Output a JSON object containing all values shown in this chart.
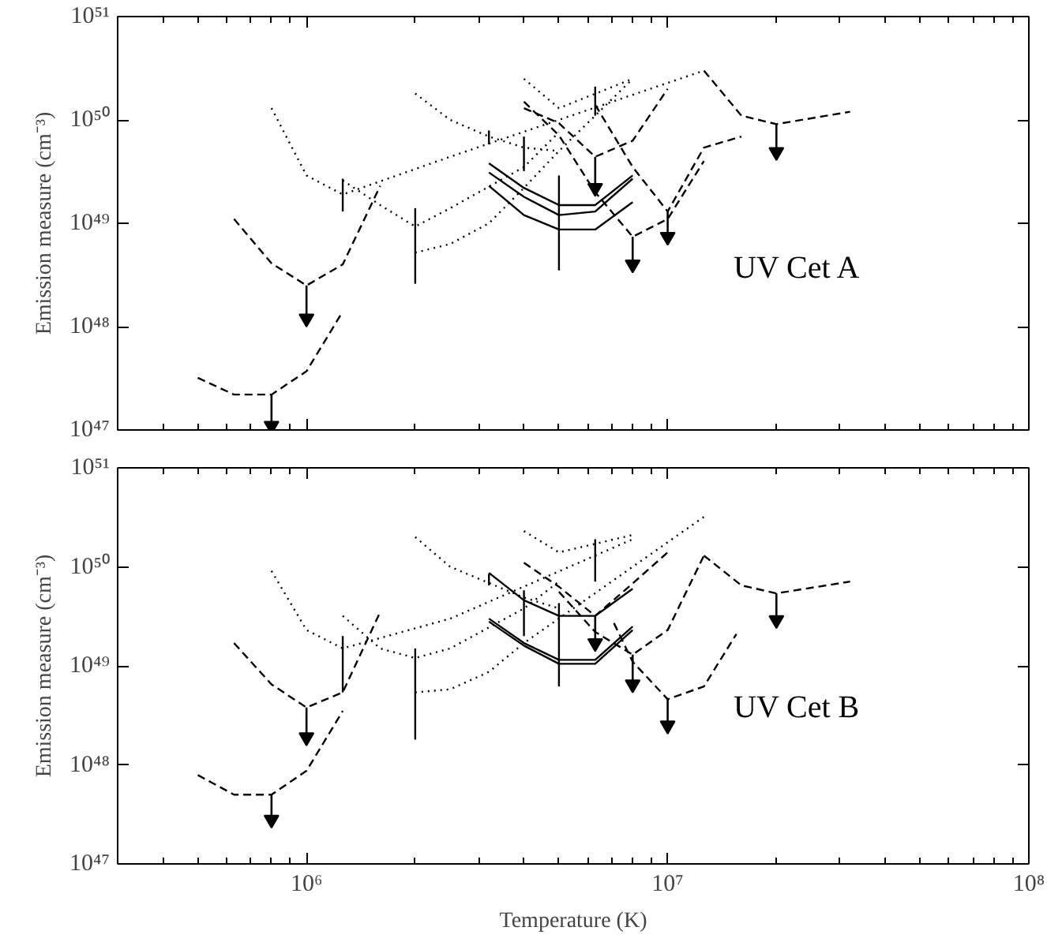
{
  "chart_data": [
    {
      "type": "line",
      "log": "xy",
      "ylabel": "Emission measure (cm⁻³)",
      "annotations": [
        "UV Cet A"
      ],
      "tick_labels": "y",
      "marker": "none",
      "xlim": [
        300000.0,
        100000000.0
      ],
      "ylim": [
        1e+47,
        1e+51
      ],
      "xticks": [
        {
          "value": 1000000.0,
          "label": null
        },
        {
          "value": 10000000.0,
          "label": null
        },
        {
          "value": 100000000.0,
          "label": null
        }
      ],
      "yticks": [
        {
          "value": 1e+47,
          "label": "10⁴⁷"
        },
        {
          "value": 1e+48,
          "label": "10⁴⁸"
        },
        {
          "value": 1e+49,
          "label": "10⁴⁹"
        },
        {
          "value": 1e+50,
          "label": "10⁵⁰"
        },
        {
          "value": 1e+51,
          "label": "10⁵¹"
        }
      ],
      "series": [
        {
          "line_style": "dashed",
          "color": "#000000",
          "x": [
            500000.0,
            630000.0,
            800000.0,
            1000000.0,
            1260000.0
          ],
          "values": [
            3.2e+47,
            2.2e+47,
            2.2e+47,
            3.7e+47,
            1.4e+48
          ]
        },
        {
          "line_style": "dashed",
          "color": "#000000",
          "x": [
            630000.0,
            800000.0,
            1000000.0,
            1260000.0,
            1600000.0
          ],
          "values": [
            1.1e+49,
            4.1e+48,
            2.5e+48,
            4e+48,
            2.3e+49
          ]
        },
        {
          "line_style": "dotted",
          "color": "#000000",
          "x": [
            800000.0,
            1000000.0,
            1260000.0,
            2500000.0,
            12600000.0
          ],
          "values": [
            1.3e+50,
            2.9e+49,
            1.9e+49,
            4.4e+49,
            3e+50
          ]
        },
        {
          "line_style": "dotted",
          "color": "#000000",
          "x": [
            1260000.0,
            1600000.0,
            2000000.0,
            2500000.0,
            4000000.0,
            5000000.0
          ],
          "values": [
            2.6e+49,
            1.5e+49,
            9.3e+48,
            1.4e+49,
            3.5e+49,
            7.6e+49
          ]
        },
        {
          "line_style": "dotted",
          "color": "#000000",
          "x": [
            2000000.0,
            2500000.0,
            3200000.0,
            4000000.0,
            5000000.0,
            6300000.0,
            8000000.0
          ],
          "values": [
            5.2e+48,
            6.3e+48,
            1e+49,
            2.2e+49,
            5e+49,
            1.1e+50,
            2.5e+50
          ]
        },
        {
          "line_style": "dotted",
          "color": "#000000",
          "x": [
            2000000.0,
            2500000.0,
            3200000.0,
            4000000.0,
            5000000.0
          ],
          "values": [
            1.8e+50,
            1e+50,
            6.9e+49,
            5.4e+49,
            5e+49
          ]
        },
        {
          "line_style": "dotted",
          "color": "#000000",
          "x": [
            4000000.0,
            5000000.0,
            8000000.0
          ],
          "values": [
            2.5e+50,
            1.3e+50,
            2.5e+50
          ]
        },
        {
          "line_style": "solid",
          "color": "#000000",
          "x": [
            3200000.0,
            4000000.0,
            5000000.0,
            6300000.0,
            8000000.0
          ],
          "values": [
            3.8e+49,
            2.2e+49,
            1.5e+49,
            1.5e+49,
            2.9e+49
          ]
        },
        {
          "line_style": "solid",
          "color": "#000000",
          "x": [
            3200000.0,
            4000000.0,
            5000000.0,
            6300000.0,
            8000000.0
          ],
          "values": [
            3.1e+49,
            1.8e+49,
            1.2e+49,
            1.3e+49,
            2.7e+49
          ]
        },
        {
          "line_style": "solid",
          "color": "#000000",
          "x": [
            3200000.0,
            4000000.0,
            5000000.0,
            6300000.0,
            8000000.0
          ],
          "values": [
            2.3e+49,
            1.2e+49,
            8.7e+48,
            8.7e+48,
            1.6e+49
          ]
        },
        {
          "line_style": "dashed",
          "color": "#000000",
          "x": [
            4000000.0,
            5000000.0,
            6300000.0,
            8000000.0,
            10000000.0
          ],
          "values": [
            1.3e+50,
            9.3e+49,
            4.4e+49,
            6.3e+49,
            2e+50
          ]
        },
        {
          "line_style": "dashed",
          "color": "#000000",
          "x": [
            6300000.0,
            8000000.0,
            10000000.0,
            12600000.0,
            16000000.0
          ],
          "values": [
            1.4e+50,
            3.5e+49,
            1.3e+49,
            5.4e+49,
            6.9e+49
          ]
        },
        {
          "line_style": "dashed",
          "color": "#000000",
          "x": [
            4000000.0,
            5000000.0,
            6300000.0,
            8000000.0,
            10000000.0,
            12600000.0
          ],
          "values": [
            1.5e+50,
            7.1e+49,
            2e+49,
            7.4e+48,
            1.1e+49,
            4e+49
          ]
        },
        {
          "line_style": "dashed",
          "color": "#000000",
          "x": [
            12600000.0,
            16000000.0,
            20000000.0,
            32000000.0
          ],
          "values": [
            3e+50,
            1.1e+50,
            9.1e+49,
            1.2e+50
          ]
        },
        {
          "line_style": "solid",
          "color": "#000000",
          "x": [
            1260000.0,
            1260000.0
          ],
          "values": [
            1.3e+49,
            2.7e+49
          ]
        },
        {
          "line_style": "solid",
          "color": "#000000",
          "x": [
            2000000.0,
            2000000.0
          ],
          "values": [
            2.6e+48,
            1.4e+49
          ]
        },
        {
          "line_style": "solid",
          "color": "#000000",
          "x": [
            3200000.0,
            3200000.0
          ],
          "values": [
            5.8e+49,
            7.9e+49
          ]
        },
        {
          "line_style": "solid",
          "color": "#000000",
          "x": [
            4000000.0,
            4000000.0
          ],
          "values": [
            3.2e+49,
            6.9e+49
          ]
        },
        {
          "line_style": "solid",
          "color": "#000000",
          "x": [
            5000000.0,
            5000000.0
          ],
          "values": [
            3.5e+48,
            2.9e+49
          ]
        },
        {
          "line_style": "solid",
          "color": "#000000",
          "x": [
            6300000.0,
            6300000.0
          ],
          "values": [
            1.1e+50,
            2.1e+50
          ]
        },
        {
          "type": "scatter",
          "marker": "triangle",
          "color": "#000000",
          "x": [
            800000.0,
            1000000.0,
            6300000.0,
            8000000.0,
            10000000.0,
            20000000.0
          ],
          "values": [
            1.1e+47,
            1.2e+48,
            2.2e+49,
            4e+48,
            7.4e+48,
            4.9e+49
          ],
          "errors": [
            [
              1.1e+47,
              2.2e+47
            ],
            [
              1.2e+48,
              2.5e+48
            ],
            [
              2.2e+49,
              4.4e+49
            ],
            [
              4e+48,
              7.4e+48
            ],
            [
              7.4e+48,
              1.3e+49
            ],
            [
              4.9e+49,
              9.1e+49
            ]
          ]
        }
      ]
    },
    {
      "type": "line",
      "log": "xy",
      "xlabel": "Temperature (K)",
      "ylabel": "Emission measure (cm⁻³)",
      "annotations": [
        "UV Cet B"
      ],
      "marker": "none",
      "xlim": [
        300000.0,
        100000000.0
      ],
      "ylim": [
        1e+47,
        1e+51
      ],
      "xticks": [
        {
          "value": 1000000.0,
          "label": "10⁶"
        },
        {
          "value": 10000000.0,
          "label": "10⁷"
        },
        {
          "value": 100000000.0,
          "label": "10⁸"
        }
      ],
      "yticks": [
        {
          "value": 1e+47,
          "label": "10⁴⁷"
        },
        {
          "value": 1e+48,
          "label": "10⁴⁸"
        },
        {
          "value": 1e+49,
          "label": "10⁴⁹"
        },
        {
          "value": 1e+50,
          "label": "10⁵⁰"
        },
        {
          "value": 1e+51,
          "label": "10⁵¹"
        }
      ],
      "series": [
        {
          "line_style": "dashed",
          "color": "#000000",
          "x": [
            500000.0,
            630000.0,
            800000.0,
            1000000.0,
            1260000.0
          ],
          "values": [
            7.9e+47,
            5e+47,
            5e+47,
            8.7e+47,
            3.5e+48
          ]
        },
        {
          "line_style": "dashed",
          "color": "#000000",
          "x": [
            630000.0,
            800000.0,
            1000000.0,
            1260000.0,
            1600000.0
          ],
          "values": [
            1.7e+49,
            6.5e+48,
            3.8e+48,
            5.4e+48,
            3.5e+49
          ]
        },
        {
          "line_style": "dotted",
          "color": "#000000",
          "x": [
            800000.0,
            1000000.0,
            1260000.0,
            2500000.0,
            8000000.0
          ],
          "values": [
            9.1e+49,
            2.3e+49,
            1.5e+49,
            3e+49,
            1.9e+50
          ]
        },
        {
          "line_style": "dotted",
          "color": "#000000",
          "x": [
            1260000.0,
            1600000.0,
            2000000.0,
            2500000.0,
            4000000.0,
            5000000.0
          ],
          "values": [
            3.2e+49,
            1.5e+49,
            1.2e+49,
            1.5e+49,
            3.8e+49,
            7.1e+49
          ]
        },
        {
          "line_style": "dotted",
          "color": "#000000",
          "x": [
            2000000.0,
            2500000.0,
            3200000.0,
            4000000.0,
            12600000.0
          ],
          "values": [
            5.4e+48,
            5.8e+48,
            8.7e+48,
            1.7e+49,
            3.2e+50
          ]
        },
        {
          "line_style": "dotted",
          "color": "#000000",
          "x": [
            2000000.0,
            2500000.0,
            4000000.0,
            5000000.0
          ],
          "values": [
            2e+50,
            1e+50,
            4.9e+49,
            3.8e+49
          ]
        },
        {
          "line_style": "dotted",
          "color": "#000000",
          "x": [
            4000000.0,
            5000000.0,
            8000000.0
          ],
          "values": [
            2.3e+50,
            1.4e+50,
            2.1e+50
          ]
        },
        {
          "line_style": "solid",
          "color": "#000000",
          "x": [
            3200000.0,
            4000000.0,
            5000000.0,
            6300000.0,
            8000000.0
          ],
          "values": [
            8.7e+49,
            4.6e+49,
            3.2e+49,
            3.2e+49,
            6e+49
          ]
        },
        {
          "line_style": "solid",
          "color": "#000000",
          "x": [
            3200000.0,
            4000000.0,
            5000000.0,
            6300000.0,
            8000000.0
          ],
          "values": [
            3e+49,
            1.7e+49,
            1.15e+49,
            1.15e+49,
            2.5e+49
          ]
        },
        {
          "line_style": "solid",
          "color": "#000000",
          "x": [
            3200000.0,
            4000000.0,
            5000000.0,
            6300000.0,
            8000000.0
          ],
          "values": [
            2.8e+49,
            1.6e+49,
            1.05e+49,
            1.05e+49,
            2.3e+49
          ]
        },
        {
          "line_style": "dashed",
          "color": "#000000",
          "x": [
            4000000.0,
            5000000.0,
            6300000.0,
            8000000.0,
            10000000.0
          ],
          "values": [
            1.1e+50,
            6.3e+49,
            3.2e+49,
            6.8e+49,
            1.4e+50
          ]
        },
        {
          "line_style": "dashed",
          "color": "#000000",
          "x": [
            5000000.0,
            6300000.0,
            8000000.0,
            10000000.0,
            12600000.0
          ],
          "values": [
            5.6e+49,
            2.2e+49,
            1.3e+49,
            2.3e+49,
            1.3e+50
          ]
        },
        {
          "line_style": "dashed",
          "color": "#000000",
          "x": [
            12600000.0,
            16000000.0,
            20000000.0,
            32000000.0
          ],
          "values": [
            1.3e+50,
            6.5e+49,
            5.4e+49,
            7.1e+49
          ]
        },
        {
          "line_style": "dashed",
          "color": "#000000",
          "x": [
            7100000.0,
            8000000.0,
            10000000.0,
            12600000.0,
            15500000.0
          ],
          "values": [
            2.7e+49,
            1.1e+49,
            4.6e+48,
            6.2e+48,
            2.1e+49
          ]
        },
        {
          "line_style": "solid",
          "color": "#000000",
          "x": [
            1260000.0,
            1260000.0
          ],
          "values": [
            5.4e+48,
            2e+49
          ]
        },
        {
          "line_style": "solid",
          "color": "#000000",
          "x": [
            2000000.0,
            2000000.0
          ],
          "values": [
            1.8e+48,
            1.5e+49
          ]
        },
        {
          "line_style": "solid",
          "color": "#000000",
          "x": [
            3200000.0,
            3200000.0
          ],
          "values": [
            6.5e+49,
            8.5e+49
          ]
        },
        {
          "line_style": "solid",
          "color": "#000000",
          "x": [
            4000000.0,
            4000000.0
          ],
          "values": [
            2e+49,
            5.8e+49
          ]
        },
        {
          "line_style": "solid",
          "color": "#000000",
          "x": [
            5000000.0,
            5000000.0
          ],
          "values": [
            6.2e+48,
            4.3e+49
          ]
        },
        {
          "line_style": "solid",
          "color": "#000000",
          "x": [
            6300000.0,
            6300000.0
          ],
          "values": [
            7.1e+49,
            1.9e+50
          ]
        },
        {
          "type": "scatter",
          "marker": "triangle",
          "color": "#000000",
          "x": [
            800000.0,
            1000000.0,
            6300000.0,
            8000000.0,
            10000000.0,
            20000000.0
          ],
          "values": [
            2.8e+47,
            1.9e+48,
            1.7e+49,
            6.5e+48,
            2.5e+48,
            2.9e+49
          ],
          "errors": [
            [
              2.8e+47,
              5e+47
            ],
            [
              1.9e+48,
              3.8e+48
            ],
            [
              1.7e+49,
              3.2e+49
            ],
            [
              6.5e+48,
              1.3e+49
            ],
            [
              2.5e+48,
              4.6e+48
            ],
            [
              2.9e+49,
              5.4e+49
            ]
          ]
        }
      ]
    }
  ]
}
